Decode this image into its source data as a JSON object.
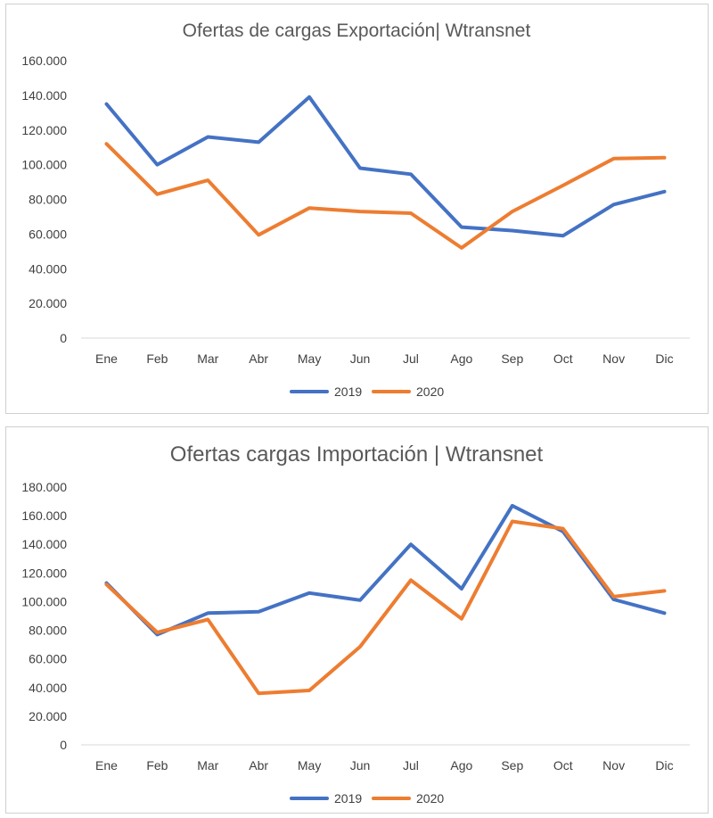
{
  "chart_data": [
    {
      "type": "line",
      "title": "Ofertas de cargas Exportación| Wtransnet",
      "xlabel": "",
      "ylabel": "",
      "categories": [
        "Ene",
        "Feb",
        "Mar",
        "Abr",
        "May",
        "Jun",
        "Jul",
        "Ago",
        "Sep",
        "Oct",
        "Nov",
        "Dic"
      ],
      "ylim": [
        0,
        160000
      ],
      "yticks": [
        0,
        20000,
        40000,
        60000,
        80000,
        100000,
        120000,
        140000,
        160000
      ],
      "ytick_labels": [
        "0",
        "20.000",
        "40.000",
        "60.000",
        "80.000",
        "100.000",
        "120.000",
        "140.000",
        "160.000"
      ],
      "grid": false,
      "legend": "bottom",
      "series": [
        {
          "name": "2019",
          "color": "#4472c4",
          "values": [
            135000,
            100000,
            116000,
            113000,
            139000,
            98000,
            94500,
            64000,
            62000,
            59000,
            77000,
            84500
          ]
        },
        {
          "name": "2020",
          "color": "#ed7d31",
          "values": [
            112000,
            83000,
            91000,
            59500,
            75000,
            73000,
            72000,
            52000,
            73000,
            88000,
            103500,
            104000
          ]
        }
      ]
    },
    {
      "type": "line",
      "title": "Ofertas cargas Importación | Wtransnet",
      "xlabel": "",
      "ylabel": "",
      "categories": [
        "Ene",
        "Feb",
        "Mar",
        "Abr",
        "May",
        "Jun",
        "Jul",
        "Ago",
        "Sep",
        "Oct",
        "Nov",
        "Dic"
      ],
      "ylim": [
        0,
        180000
      ],
      "yticks": [
        0,
        20000,
        40000,
        60000,
        80000,
        100000,
        120000,
        140000,
        160000,
        180000
      ],
      "ytick_labels": [
        "0",
        "20.000",
        "40.000",
        "60.000",
        "80.000",
        "100.000",
        "120.000",
        "140.000",
        "160.000",
        "180.000"
      ],
      "grid": false,
      "legend": "bottom",
      "series": [
        {
          "name": "2019",
          "color": "#4472c4",
          "values": [
            113000,
            77000,
            92000,
            93000,
            106000,
            101000,
            140000,
            109000,
            167000,
            149000,
            101500,
            92000
          ]
        },
        {
          "name": "2020",
          "color": "#ed7d31",
          "values": [
            112000,
            78500,
            87500,
            36000,
            38000,
            68500,
            115000,
            88000,
            156000,
            151000,
            103500,
            107500
          ]
        }
      ]
    }
  ]
}
